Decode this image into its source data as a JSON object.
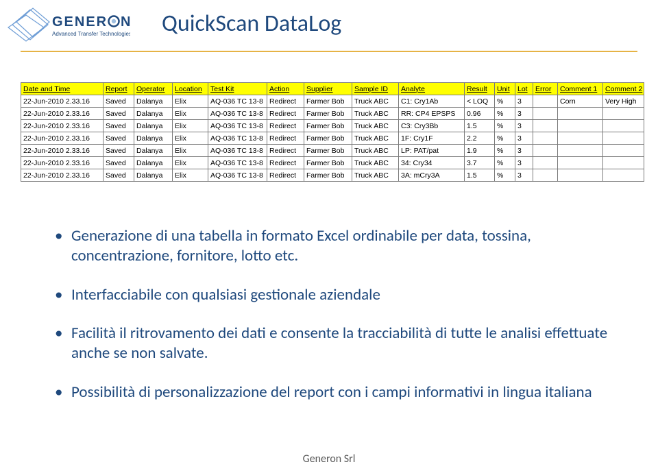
{
  "logo": {
    "main_text": "GENERON",
    "tagline": "Advanced Transfer Technologies",
    "letter_color": "#1f497d",
    "accent_color": "#9fbfe0",
    "lines_color": "#6f9ed6"
  },
  "title": "QuickScan DataLog",
  "title_color": "#1f497d",
  "underline_color": "#e6b345",
  "table": {
    "header_bg": "#ffff00",
    "border_color": "#7a7a7a",
    "columns": [
      "Date and Time",
      "Report",
      "Operator",
      "Location",
      "Test Kit",
      "Action",
      "Supplier",
      "Sample ID",
      "Analyte",
      "Result",
      "Unit",
      "Lot",
      "Error",
      "Comment 1",
      "Comment 2"
    ],
    "rows": [
      [
        "22-Jun-2010 2.33.16",
        "Saved",
        "Dalanya",
        "Elix",
        "AQ-036 TC 13-8",
        "Redirect",
        "Farmer Bob",
        "Truck ABC",
        "C1: Cry1Ab",
        "< LOQ",
        "%",
        "3",
        "",
        "Corn",
        "Very High"
      ],
      [
        "22-Jun-2010 2.33.16",
        "Saved",
        "Dalanya",
        "Elix",
        "AQ-036 TC 13-8",
        "Redirect",
        "Farmer Bob",
        "Truck ABC",
        "RR: CP4 EPSPS",
        "0.96",
        "%",
        "3",
        "",
        "",
        ""
      ],
      [
        "22-Jun-2010 2.33.16",
        "Saved",
        "Dalanya",
        "Elix",
        "AQ-036 TC 13-8",
        "Redirect",
        "Farmer Bob",
        "Truck ABC",
        "C3: Cry3Bb",
        "1.5",
        "%",
        "3",
        "",
        "",
        ""
      ],
      [
        "22-Jun-2010 2.33.16",
        "Saved",
        "Dalanya",
        "Elix",
        "AQ-036 TC 13-8",
        "Redirect",
        "Farmer Bob",
        "Truck ABC",
        "1F: Cry1F",
        "2.2",
        "%",
        "3",
        "",
        "",
        ""
      ],
      [
        "22-Jun-2010 2.33.16",
        "Saved",
        "Dalanya",
        "Elix",
        "AQ-036 TC 13-8",
        "Redirect",
        "Farmer Bob",
        "Truck ABC",
        "LP: PAT/pat",
        "1.9",
        "%",
        "3",
        "",
        "",
        ""
      ],
      [
        "22-Jun-2010 2.33.16",
        "Saved",
        "Dalanya",
        "Elix",
        "AQ-036 TC 13-8",
        "Redirect",
        "Farmer Bob",
        "Truck ABC",
        "34: Cry34",
        "3.7",
        "%",
        "3",
        "",
        "",
        ""
      ],
      [
        "22-Jun-2010 2.33.16",
        "Saved",
        "Dalanya",
        "Elix",
        "AQ-036 TC 13-8",
        "Redirect",
        "Farmer Bob",
        "Truck ABC",
        "3A: mCry3A",
        "1.5",
        "%",
        "3",
        "",
        "",
        ""
      ]
    ]
  },
  "bullets": [
    "Generazione di una tabella in formato Excel ordinabile per data, tossina, concentrazione, fornitore, lotto etc.",
    "Interfacciabile con qualsiasi gestionale aziendale",
    "Facilità il ritrovamento dei dati e consente la tracciabilità di tutte le analisi effettuate anche se non salvate.",
    "Possibilità di personalizzazione del report con i campi informativi in lingua italiana"
  ],
  "footer": "Generon Srl",
  "body_color": "#1f497d",
  "footer_color": "#595959"
}
